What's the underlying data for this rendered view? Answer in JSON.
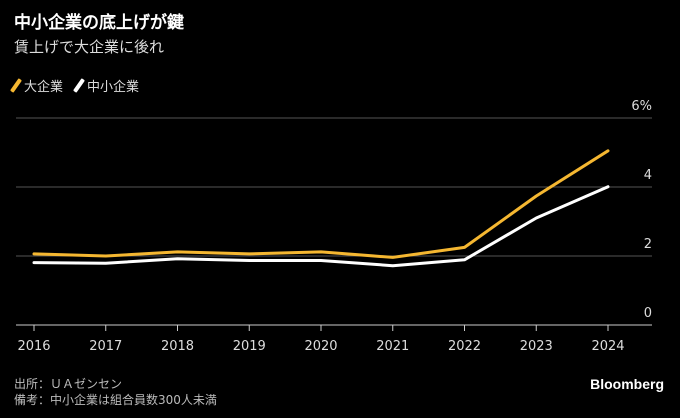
{
  "header": {
    "title": "中小企業の底上げが鍵",
    "subtitle": "賃上げで大企業に後れ"
  },
  "footer": {
    "source": "出所：ＵＡゼンセン",
    "note": "備考：中小企業は組合員数300人未満",
    "brand": "Bloomberg"
  },
  "colors": {
    "large": "#f5b731",
    "small": "#ffffff",
    "grid": "#555555",
    "axis": "#cccccc"
  },
  "chart_data": {
    "type": "line",
    "x": [
      "2016",
      "2017",
      "2018",
      "2019",
      "2020",
      "2021",
      "2022",
      "2023",
      "2024"
    ],
    "series": [
      {
        "name": "大企業",
        "values": [
          2.06,
          2.0,
          2.12,
          2.06,
          2.12,
          1.96,
          2.25,
          3.74,
          5.05
        ]
      },
      {
        "name": "中小企業",
        "values": [
          1.81,
          1.79,
          1.92,
          1.87,
          1.87,
          1.72,
          1.89,
          3.1,
          4.01
        ]
      }
    ],
    "yticks": [
      "0",
      "2",
      "4",
      "6%"
    ],
    "ylim": [
      0,
      6
    ],
    "grid": true,
    "legend": "top-left"
  }
}
